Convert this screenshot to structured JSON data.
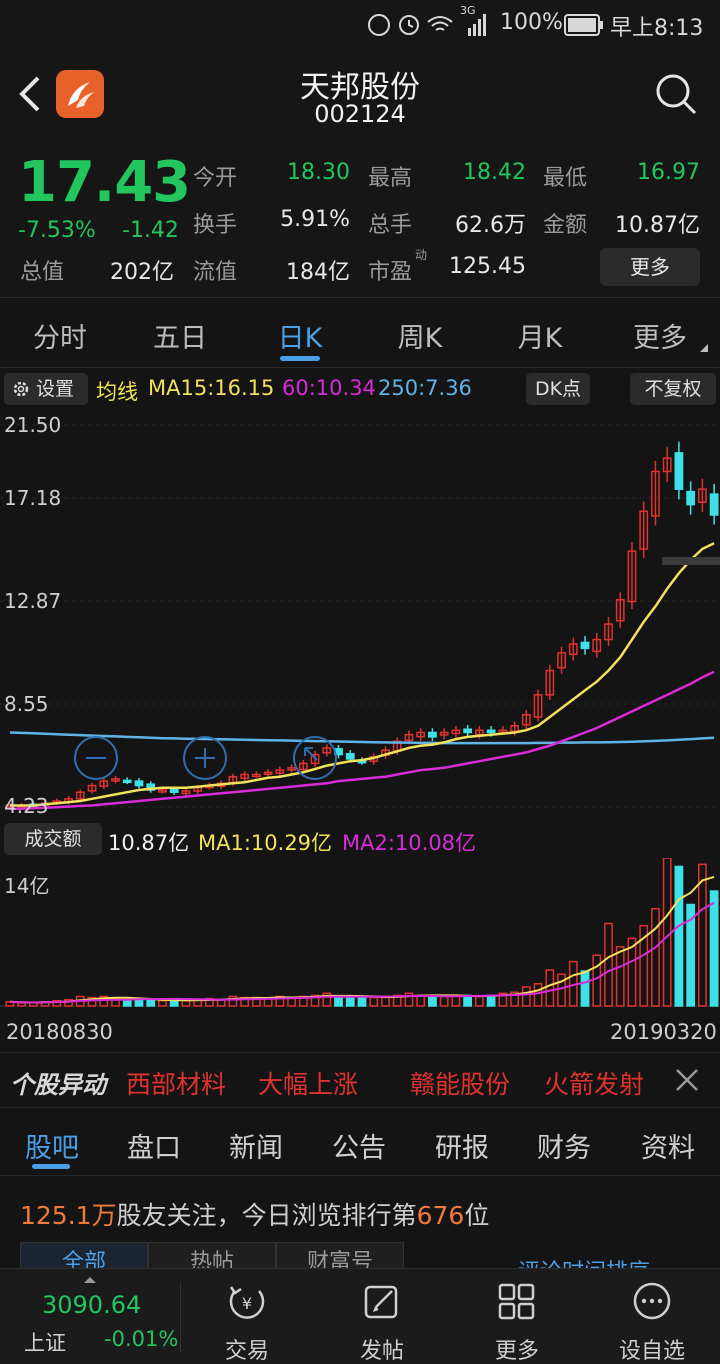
{
  "status_bar": {
    "battery": "100%",
    "signal": "3G",
    "time": "早上8:13"
  },
  "header": {
    "title": "天邦股份",
    "code": "002124"
  },
  "quote": {
    "price": "17.43",
    "change_pct": "-7.53%",
    "change": "-1.42",
    "total_value_label": "总值",
    "total_value": "202亿",
    "fields": [
      {
        "label": "今开",
        "value": "18.30"
      },
      {
        "label": "最高",
        "value": "18.42"
      },
      {
        "label": "最低",
        "value": "16.97"
      },
      {
        "label": "换手",
        "value": "5.91%"
      },
      {
        "label": "总手",
        "value": "62.6万"
      },
      {
        "label": "金额",
        "value": "10.87亿"
      },
      {
        "label": "流值",
        "value": "184亿"
      },
      {
        "label": "市盈",
        "value": "125.45"
      }
    ],
    "pe_superscript": "动",
    "more_label": "更多",
    "colors": {
      "down": "#22c55e",
      "up": "#e0322e"
    }
  },
  "tabs": [
    "分时",
    "五日",
    "日K",
    "周K",
    "月K",
    "更多"
  ],
  "active_tab": "日K",
  "chart_toolbar": {
    "settings_label": "设置",
    "ma_title": "均线",
    "ma15": "MA15:16.15",
    "ma60": "60:10.34",
    "ma250": "250:7.36",
    "dk_label": "DK点",
    "adjust_label": "不复权"
  },
  "volume_toolbar": {
    "label": "成交额",
    "value": "10.87亿",
    "ma1": "MA1:10.29亿",
    "ma2": "MA2:10.08亿",
    "axis_max": "14亿"
  },
  "dates": {
    "start": "20180830",
    "end": "20190320"
  },
  "chart_data": {
    "type": "candlestick",
    "y_ticks": [
      "21.50",
      "17.18",
      "12.87",
      "8.55",
      "4.23"
    ],
    "ylim": [
      4.23,
      21.5
    ],
    "x_start": "20180830",
    "x_end": "20190320",
    "ma_colors": {
      "ma15": "#f2e15c",
      "ma60": "#d92bd9",
      "ma250": "#5fb3e6"
    },
    "closes": [
      4.3,
      4.3,
      4.35,
      4.4,
      4.5,
      4.6,
      4.9,
      5.2,
      5.4,
      5.5,
      5.4,
      5.2,
      5.0,
      5.0,
      4.9,
      4.95,
      5.1,
      5.2,
      5.3,
      5.6,
      5.7,
      5.7,
      5.8,
      5.9,
      6.0,
      6.2,
      6.6,
      6.9,
      6.6,
      6.4,
      6.3,
      6.5,
      6.8,
      7.2,
      7.5,
      7.6,
      7.4,
      7.6,
      7.7,
      7.6,
      7.7,
      7.6,
      7.7,
      7.9,
      8.4,
      9.3,
      10.4,
      11.2,
      11.6,
      11.4,
      11.8,
      12.5,
      13.6,
      15.8,
      17.6,
      19.4,
      20.0,
      18.6,
      17.9,
      18.6,
      17.43
    ],
    "volumes": [
      0.4,
      0.3,
      0.3,
      0.4,
      0.5,
      0.6,
      0.9,
      0.8,
      0.9,
      0.7,
      0.6,
      0.6,
      0.5,
      0.5,
      0.6,
      0.5,
      0.6,
      0.7,
      0.6,
      0.9,
      0.8,
      0.8,
      0.7,
      0.9,
      0.8,
      0.9,
      1.0,
      1.2,
      0.9,
      0.8,
      0.8,
      0.8,
      0.9,
      1.0,
      1.2,
      1.0,
      0.9,
      0.9,
      1.0,
      1.0,
      0.9,
      1.0,
      1.2,
      1.3,
      1.8,
      2.1,
      3.4,
      3.0,
      4.2,
      3.3,
      4.8,
      7.8,
      5.6,
      6.4,
      7.6,
      9.2,
      14.0,
      13.2,
      9.6,
      13.4,
      10.87
    ],
    "ma15": [
      4.3,
      4.3,
      4.3,
      4.35,
      4.4,
      4.45,
      4.5,
      4.6,
      4.7,
      4.8,
      4.9,
      5.0,
      5.05,
      5.1,
      5.1,
      5.1,
      5.15,
      5.2,
      5.25,
      5.3,
      5.35,
      5.45,
      5.55,
      5.6,
      5.7,
      5.8,
      5.95,
      6.1,
      6.2,
      6.3,
      6.35,
      6.45,
      6.6,
      6.75,
      6.9,
      7.0,
      7.05,
      7.15,
      7.3,
      7.4,
      7.45,
      7.5,
      7.55,
      7.6,
      7.7,
      7.9,
      8.3,
      8.7,
      9.1,
      9.5,
      9.9,
      10.4,
      11.0,
      11.8,
      12.6,
      13.3,
      14.1,
      14.8,
      15.4,
      15.9,
      16.15
    ],
    "ma60": [
      4.15,
      4.15,
      4.18,
      4.2,
      4.22,
      4.25,
      4.28,
      4.3,
      4.35,
      4.4,
      4.45,
      4.5,
      4.55,
      4.6,
      4.65,
      4.7,
      4.75,
      4.8,
      4.85,
      4.9,
      4.95,
      5.0,
      5.05,
      5.1,
      5.15,
      5.2,
      5.25,
      5.3,
      5.4,
      5.45,
      5.5,
      5.55,
      5.6,
      5.7,
      5.8,
      5.9,
      5.95,
      6.0,
      6.1,
      6.2,
      6.3,
      6.4,
      6.5,
      6.6,
      6.7,
      6.85,
      7.0,
      7.2,
      7.4,
      7.6,
      7.8,
      8.05,
      8.3,
      8.55,
      8.8,
      9.05,
      9.3,
      9.55,
      9.8,
      10.1,
      10.34
    ],
    "ma250": [
      7.6,
      7.58,
      7.56,
      7.54,
      7.52,
      7.5,
      7.48,
      7.46,
      7.44,
      7.42,
      7.4,
      7.38,
      7.36,
      7.34,
      7.33,
      7.32,
      7.31,
      7.3,
      7.29,
      7.28,
      7.27,
      7.26,
      7.25,
      7.24,
      7.23,
      7.22,
      7.21,
      7.2,
      7.19,
      7.18,
      7.17,
      7.16,
      7.15,
      7.14,
      7.14,
      7.13,
      7.13,
      7.12,
      7.12,
      7.12,
      7.12,
      7.12,
      7.12,
      7.12,
      7.12,
      7.13,
      7.13,
      7.14,
      7.14,
      7.15,
      7.15,
      7.16,
      7.17,
      7.18,
      7.2,
      7.22,
      7.24,
      7.27,
      7.3,
      7.33,
      7.36
    ]
  },
  "alerts": {
    "brand": "个股异动",
    "items": [
      "西部材料",
      "大幅上涨",
      "赣能股份",
      "火箭发射"
    ]
  },
  "sub_tabs": [
    "股吧",
    "盘口",
    "新闻",
    "公告",
    "研报",
    "财务",
    "资料"
  ],
  "follow": {
    "count": "125.1万",
    "text_a": "股友关注，今日浏览排行第",
    "rank": "676",
    "text_b": "位"
  },
  "filters": [
    "全部",
    "热帖",
    "财富号"
  ],
  "sort_link": "评论时间排序",
  "bottom_nav": {
    "index_value": "3090.64",
    "index_name": "上证",
    "index_change": "-0.01%",
    "items": [
      "交易",
      "发帖",
      "更多",
      "设自选"
    ]
  }
}
